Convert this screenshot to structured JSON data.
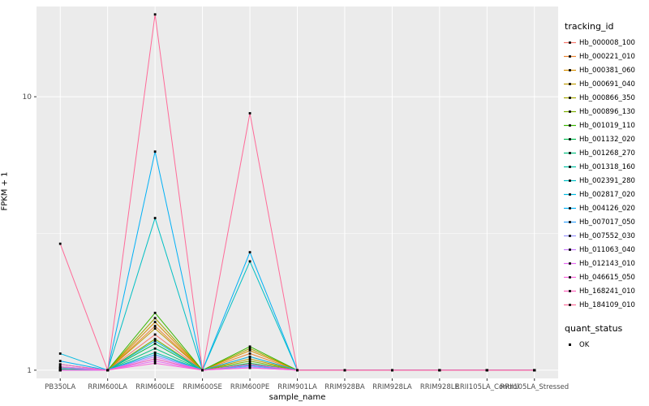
{
  "chart_data": {
    "type": "line",
    "title": "",
    "xlabel": "sample_name",
    "ylabel": "FPKM + 1",
    "y_scale": "log10",
    "y_ticks": [
      1,
      10
    ],
    "y_minor_ticks": [
      3.162
    ],
    "ylim_log10": [
      -0.03,
      1.33
    ],
    "panel_bg": "#EBEBEB",
    "grid_color": "#FFFFFF",
    "tick_color": "#333333",
    "tick_label_color": "#4D4D4D",
    "point_color": "#000000",
    "legend_position": "right",
    "categories": [
      "PB350LA",
      "RRIM600LA",
      "RRIM600LE",
      "RRIM600SE",
      "RRIM600PE",
      "RRIM901LA",
      "RRIM928BA",
      "RRIM928LA",
      "RRIM928LE",
      "RRII105LA_Control",
      "RRII105LA_Stressed"
    ],
    "legend": {
      "color_title": "tracking_id",
      "shape_title": "quant_status",
      "shape_items": [
        {
          "label": "OK"
        }
      ]
    },
    "series": [
      {
        "name": "Hb_000008_100",
        "color": "#F8766D",
        "values": [
          1,
          1,
          1.35,
          1,
          1.12,
          1,
          1,
          1,
          1,
          1,
          1
        ]
      },
      {
        "name": "Hb_000221_010",
        "color": "#EA8331",
        "values": [
          1,
          1,
          1.45,
          1,
          1.15,
          1,
          1,
          1,
          1,
          1,
          1
        ]
      },
      {
        "name": "Hb_000381_060",
        "color": "#D89000",
        "values": [
          1.02,
          1,
          1.5,
          1,
          1.18,
          1,
          1,
          1,
          1,
          1,
          1
        ]
      },
      {
        "name": "Hb_000691_040",
        "color": "#C09B00",
        "values": [
          1,
          1,
          1.42,
          1,
          1.1,
          1,
          1,
          1,
          1,
          1,
          1
        ]
      },
      {
        "name": "Hb_000866_350",
        "color": "#A3A500",
        "values": [
          1.03,
          1,
          1.55,
          1,
          1.2,
          1,
          1,
          1,
          1,
          1,
          1
        ]
      },
      {
        "name": "Hb_000896_130",
        "color": "#7CAE00",
        "values": [
          1,
          1,
          1.3,
          1,
          1.08,
          1,
          1,
          1,
          1,
          1,
          1
        ]
      },
      {
        "name": "Hb_001019_110",
        "color": "#39B600",
        "values": [
          1.02,
          1,
          1.62,
          1,
          1.22,
          1,
          1,
          1,
          1,
          1,
          1
        ]
      },
      {
        "name": "Hb_001132_020",
        "color": "#00BB4E",
        "values": [
          1,
          1,
          1.25,
          1,
          1.06,
          1,
          1,
          1,
          1,
          1,
          1
        ]
      },
      {
        "name": "Hb_001268_270",
        "color": "#00BF7D",
        "values": [
          1.01,
          1,
          1.2,
          1,
          1.05,
          1,
          1,
          1,
          1,
          1,
          1
        ]
      },
      {
        "name": "Hb_001318_160",
        "color": "#00C1A3",
        "values": [
          1,
          1,
          1.16,
          1,
          1.04,
          1,
          1,
          1,
          1,
          1,
          1
        ]
      },
      {
        "name": "Hb_002391_280",
        "color": "#00BFC4",
        "values": [
          1.05,
          1,
          3.6,
          1,
          2.5,
          1,
          1,
          1,
          1,
          1,
          1
        ]
      },
      {
        "name": "Hb_002817_020",
        "color": "#00BAE0",
        "values": [
          1.15,
          1,
          1.28,
          1,
          1.12,
          1,
          1,
          1,
          1,
          1,
          1
        ]
      },
      {
        "name": "Hb_004126_020",
        "color": "#00B0F6",
        "values": [
          1.08,
          1,
          6.3,
          1,
          2.7,
          1,
          1,
          1,
          1,
          1,
          1
        ]
      },
      {
        "name": "Hb_007017_050",
        "color": "#35A2FF",
        "values": [
          1,
          1,
          1.14,
          1,
          1.04,
          1,
          1,
          1,
          1,
          1,
          1
        ]
      },
      {
        "name": "Hb_007552_030",
        "color": "#9590FF",
        "values": [
          1.02,
          1,
          1.1,
          1,
          1.03,
          1,
          1,
          1,
          1,
          1,
          1
        ]
      },
      {
        "name": "Hb_011063_040",
        "color": "#C77CFF",
        "values": [
          1,
          1,
          1.12,
          1,
          1.05,
          1,
          1,
          1,
          1,
          1,
          1
        ]
      },
      {
        "name": "Hb_012143_010",
        "color": "#E76BF3",
        "values": [
          1.03,
          1,
          1.08,
          1,
          1.02,
          1,
          1,
          1,
          1,
          1,
          1
        ]
      },
      {
        "name": "Hb_046615_050",
        "color": "#FA62DB",
        "values": [
          1,
          1,
          1.06,
          1,
          1.02,
          1,
          1,
          1,
          1,
          1,
          1
        ]
      },
      {
        "name": "Hb_168241_010",
        "color": "#FF62BC",
        "values": [
          1.05,
          1,
          1.1,
          1,
          1.05,
          1,
          1,
          1,
          1,
          1,
          1
        ]
      },
      {
        "name": "Hb_184109_010",
        "color": "#FF6A98",
        "values": [
          2.9,
          1,
          20,
          1,
          8.7,
          1,
          1,
          1,
          1,
          1,
          1
        ]
      }
    ]
  }
}
